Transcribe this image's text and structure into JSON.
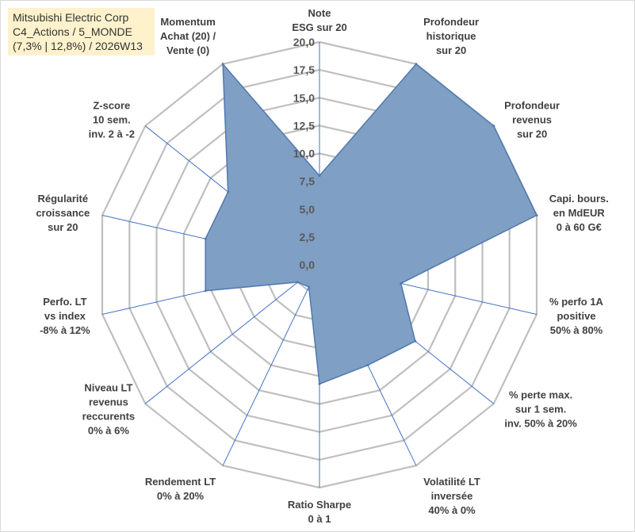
{
  "title_box": {
    "line1": "Mitsubishi Electric Corp",
    "line2": "C4_Actions / 5_MONDE",
    "line3": "(7,3% | 12,8%) / 2026W13"
  },
  "chart_data": {
    "type": "radar",
    "title": "Mitsubishi Electric Corp",
    "rlim": [
      0,
      20
    ],
    "ticks": [
      "0,0",
      "2,5",
      "5,0",
      "7,5",
      "10,0",
      "12,5",
      "15,0",
      "17,5",
      "20,0"
    ],
    "grid": true,
    "axes": [
      {
        "label": [
          "Note",
          "ESG sur 20"
        ],
        "value": 8.0
      },
      {
        "label": [
          "Profondeur",
          "historique",
          "sur 20"
        ],
        "value": 20.0
      },
      {
        "label": [
          "Profondeur",
          "revenus",
          "sur 20"
        ],
        "value": 20.0
      },
      {
        "label": [
          "Capi. bours.",
          "en MdEUR",
          "0 à 60 G€"
        ],
        "value": 20.0
      },
      {
        "label": [
          "% perfo 1A",
          "positive",
          "50% à 80%"
        ],
        "value": 7.5
      },
      {
        "label": [
          "% perte max.",
          "sur 1 sem.",
          "inv. 50% à 20%"
        ],
        "value": 11.0
      },
      {
        "label": [
          "Volatilité LT",
          "inversée",
          "40% à 0%"
        ],
        "value": 10.0
      },
      {
        "label": [
          "Ratio Sharpe",
          "0 à 1"
        ],
        "value": 10.7
      },
      {
        "label": [
          "Rendement LT",
          "0% à 20%"
        ],
        "value": 2.2
      },
      {
        "label": [
          "Niveau LT",
          "revenus",
          "reccurents",
          "0% à 6%"
        ],
        "value": 2.5
      },
      {
        "label": [
          "Perfo. LT",
          "vs index",
          "-8% à 12%"
        ],
        "value": 10.5
      },
      {
        "label": [
          "Régularité",
          "croissance",
          "sur 20"
        ],
        "value": 10.5
      },
      {
        "label": [
          "Z-score",
          "10 sem.",
          "inv. 2 à -2"
        ],
        "value": 10.5
      },
      {
        "label": [
          "Momentum",
          "Achat (20) /",
          "Vente (0)"
        ],
        "value": 20.0
      }
    ],
    "colors": {
      "fill": "#7f9fc4",
      "stroke": "#4f79b0",
      "grid": "#bfbfbf",
      "spoke": "#4472c4"
    }
  }
}
